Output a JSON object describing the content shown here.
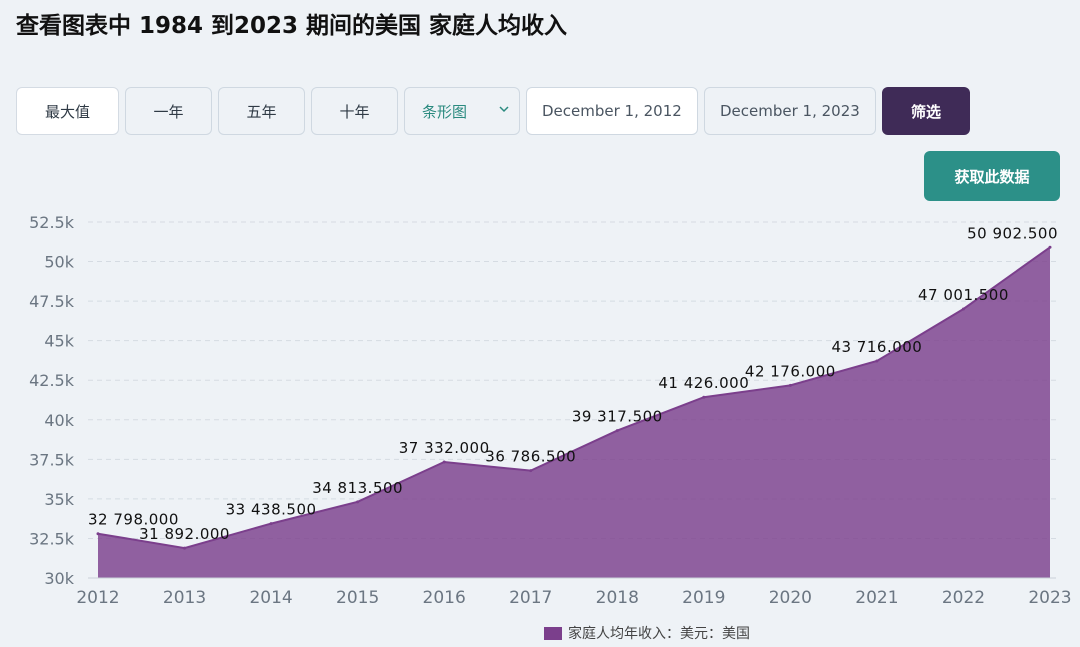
{
  "page": {
    "title": "查看图表中 1984 到2023 期间的美国 家庭人均收入"
  },
  "controls": {
    "range_buttons": [
      "最大值",
      "一年",
      "五年",
      "十年"
    ],
    "chart_type_selected": "条形图",
    "start_date": "December 1, 2012",
    "end_date": "December 1, 2023",
    "filter_label": "筛选",
    "get_data_label": "获取此数据"
  },
  "colors": {
    "area_fill": "#7b3f8c",
    "filter_button": "#3f2b57",
    "get_data_button": "#2c9088"
  },
  "chart_data": {
    "type": "area",
    "categories": [
      "2012",
      "2013",
      "2014",
      "2015",
      "2016",
      "2017",
      "2018",
      "2019",
      "2020",
      "2021",
      "2022",
      "2023"
    ],
    "series": [
      {
        "name": "家庭人均年收入：美元：美国",
        "values": [
          32798.0,
          31892.0,
          33438.5,
          34813.5,
          37332.0,
          36786.5,
          39317.5,
          41426.0,
          42176.0,
          43716.0,
          47001.5,
          50902.5
        ]
      }
    ],
    "data_labels": [
      "32 798.000",
      "31 892.000",
      "33 438.500",
      "34 813.500",
      "37 332.000",
      "36 786.500",
      "39 317.500",
      "41 426.000",
      "42 176.000",
      "43 716.000",
      "47 001.500",
      "50 902.500"
    ],
    "y_ticks": [
      "30k",
      "32.5k",
      "35k",
      "37.5k",
      "40k",
      "42.5k",
      "45k",
      "47.5k",
      "50k",
      "52.5k"
    ],
    "y_tick_values": [
      30000,
      32500,
      35000,
      37500,
      40000,
      42500,
      45000,
      47500,
      50000,
      52500
    ],
    "ylim": [
      30000,
      52500
    ],
    "grid": true,
    "legend_position": "bottom-center"
  }
}
